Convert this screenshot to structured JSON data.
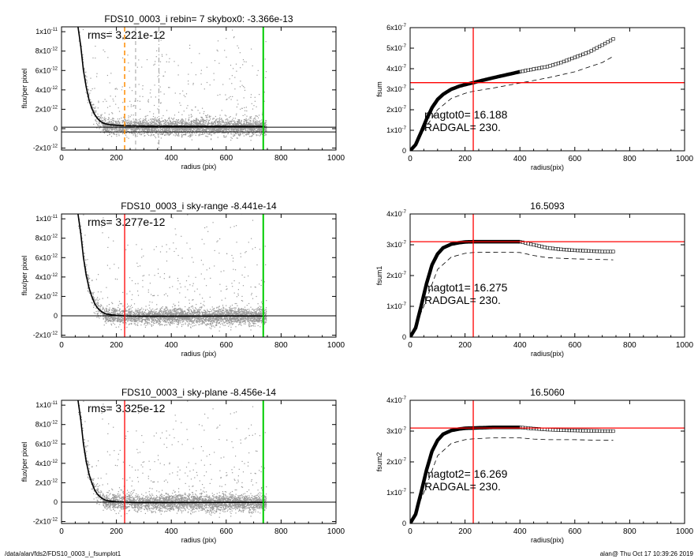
{
  "footer": {
    "path": "/data/alan/fds2/FDS10_0003_i_fsumplot1",
    "stamp": "alan@  Thu Oct 17 10:39:26 2019"
  },
  "colors": {
    "profile": "#000000",
    "scatter": "#999999",
    "radgal_line": "#ff0000",
    "sky_line": "#00cc00",
    "guess_line": "#ff8c00",
    "axis": "#000000"
  },
  "chart_data": [
    {
      "id": "profile-1",
      "type": "scatter",
      "title": "FDS10_0003_i rebin= 7    skybox0: -3.366e-13",
      "annotation": "rms= 3.221e-12",
      "xlabel": "radius (pix)",
      "ylabel": "flux/per pixel",
      "xlim": [
        0,
        1000
      ],
      "ylim": [
        -2.2e-12,
        1.05e-11
      ],
      "xticks": [
        "0",
        "200",
        "400",
        "600",
        "800",
        "1000"
      ],
      "yticks": [
        {
          "v": -2e-12,
          "m": "-2",
          "e": "-12"
        },
        {
          "v": 0,
          "m": "0",
          "e": ""
        },
        {
          "v": 2e-12,
          "m": "2",
          "e": "-12"
        },
        {
          "v": 4e-12,
          "m": "4",
          "e": "-12"
        },
        {
          "v": 6e-12,
          "m": "6",
          "e": "-12"
        },
        {
          "v": 8e-12,
          "m": "8",
          "e": "-12"
        },
        {
          "v": 1e-11,
          "m": "1",
          "e": "-11"
        }
      ],
      "profile": {
        "x": [
          60,
          70,
          80,
          90,
          100,
          110,
          120,
          130,
          140,
          150,
          160,
          180,
          200,
          230,
          260,
          300,
          350,
          400,
          450,
          500,
          550,
          600,
          650,
          700,
          740
        ],
        "y": [
          1.05e-11,
          8.5e-12,
          6e-12,
          4.3e-12,
          3e-12,
          2.1e-12,
          1.5e-12,
          1.1e-12,
          8e-13,
          6e-13,
          5e-13,
          4e-13,
          3.5e-13,
          3e-13,
          2.8e-13,
          2.7e-13,
          2.6e-13,
          2.6e-13,
          2.5e-13,
          2.5e-13,
          2.5e-13,
          2.5e-13,
          2.4e-13,
          2.4e-13,
          2.4e-13
        ]
      },
      "hlines": [
        1.5e-13,
        -3.366e-13
      ],
      "vlines": [
        {
          "x": 230,
          "style": "orange-dashed"
        },
        {
          "x": 270,
          "style": "gray-dashed"
        },
        {
          "x": 355,
          "style": "gray-dashdot"
        },
        {
          "x": 735,
          "style": "green"
        }
      ],
      "scatter_note": "dense point cloud of per-pixel flux values"
    },
    {
      "id": "growth-1",
      "type": "line",
      "title": "",
      "xlabel": "radius(pix)",
      "ylabel": "fsum",
      "xlim": [
        0,
        1000
      ],
      "ylim": [
        0,
        6e-07
      ],
      "xticks": [
        "0",
        "200",
        "400",
        "600",
        "800",
        "1000"
      ],
      "yticks": [
        {
          "v": 0,
          "m": "0",
          "e": ""
        },
        {
          "v": 1e-07,
          "m": "1",
          "e": "-7"
        },
        {
          "v": 2e-07,
          "m": "2",
          "e": "-7"
        },
        {
          "v": 3e-07,
          "m": "3",
          "e": "-7"
        },
        {
          "v": 4e-07,
          "m": "4",
          "e": "-7"
        },
        {
          "v": 5e-07,
          "m": "5",
          "e": "-7"
        },
        {
          "v": 6e-07,
          "m": "6",
          "e": "-7"
        }
      ],
      "annotations": [
        "magtot0=  16.188",
        "RADGAL=    230."
      ],
      "curve": {
        "x": [
          0,
          20,
          40,
          60,
          80,
          100,
          120,
          150,
          180,
          200,
          230,
          260,
          300,
          350,
          400,
          450,
          500,
          550,
          600,
          650,
          700,
          740
        ],
        "y": [
          0,
          3e-08,
          9e-08,
          1.55e-07,
          2.1e-07,
          2.5e-07,
          2.75e-07,
          3e-07,
          3.15e-07,
          3.22e-07,
          3.32e-07,
          3.42e-07,
          3.55e-07,
          3.7e-07,
          3.85e-07,
          3.98e-07,
          4.1e-07,
          4.3e-07,
          4.55e-07,
          4.8e-07,
          5.15e-07,
          5.45e-07
        ]
      },
      "dashed": {
        "x": [
          0,
          50,
          100,
          150,
          200,
          230,
          300,
          400,
          500,
          600,
          700,
          740
        ],
        "y": [
          0,
          1e-07,
          2e-07,
          2.55e-07,
          2.8e-07,
          2.9e-07,
          3.05e-07,
          3.3e-07,
          3.55e-07,
          3.85e-07,
          4.3e-07,
          4.6e-07
        ]
      },
      "marker_start_x": 400,
      "hline": 3.32e-07,
      "vline": 230
    },
    {
      "id": "profile-2",
      "type": "scatter",
      "title": "FDS10_0003_i sky-range -8.441e-14",
      "annotation": "rms= 3.277e-12",
      "xlabel": "radius (pix)",
      "ylabel": "flux/per pixel",
      "xlim": [
        0,
        1000
      ],
      "ylim": [
        -2.2e-12,
        1.05e-11
      ],
      "xticks": [
        "0",
        "200",
        "400",
        "600",
        "800",
        "1000"
      ],
      "yticks": [
        {
          "v": -2e-12,
          "m": "-2",
          "e": "-12"
        },
        {
          "v": 0,
          "m": "0",
          "e": ""
        },
        {
          "v": 2e-12,
          "m": "2",
          "e": "-12"
        },
        {
          "v": 4e-12,
          "m": "4",
          "e": "-12"
        },
        {
          "v": 6e-12,
          "m": "6",
          "e": "-12"
        },
        {
          "v": 8e-12,
          "m": "8",
          "e": "-12"
        },
        {
          "v": 1e-11,
          "m": "1",
          "e": "-11"
        }
      ],
      "profile": {
        "x": [
          60,
          70,
          80,
          90,
          100,
          110,
          120,
          130,
          140,
          150,
          160,
          180,
          200,
          230,
          260,
          300,
          350,
          400,
          450,
          500,
          550,
          600,
          650,
          700,
          740
        ],
        "y": [
          1.05e-11,
          8.5e-12,
          6e-12,
          4.2e-12,
          2.9e-12,
          2e-12,
          1.3e-12,
          8.5e-13,
          5.5e-13,
          3.5e-13,
          2e-13,
          1e-13,
          5e-14,
          0,
          -3e-14,
          -5e-14,
          -5e-14,
          -4e-14,
          -4e-14,
          -3e-14,
          -3e-14,
          -2e-14,
          -2e-14,
          -2e-14,
          -2e-14
        ]
      },
      "hlines": [
        0
      ],
      "vlines": [
        {
          "x": 230,
          "style": "red"
        },
        {
          "x": 735,
          "style": "green"
        }
      ],
      "scatter_note": "dense point cloud of per-pixel flux values"
    },
    {
      "id": "growth-2",
      "type": "line",
      "title": "16.5093",
      "xlabel": "radius(pix)",
      "ylabel": "fsum1",
      "xlim": [
        0,
        1000
      ],
      "ylim": [
        0,
        4e-07
      ],
      "xticks": [
        "0",
        "200",
        "400",
        "600",
        "800",
        "1000"
      ],
      "yticks": [
        {
          "v": 0,
          "m": "0",
          "e": ""
        },
        {
          "v": 1e-07,
          "m": "1",
          "e": "-7"
        },
        {
          "v": 2e-07,
          "m": "2",
          "e": "-7"
        },
        {
          "v": 3e-07,
          "m": "3",
          "e": "-7"
        },
        {
          "v": 4e-07,
          "m": "4",
          "e": "-7"
        }
      ],
      "annotations": [
        "magtot1=  16.275",
        "RADGAL=    230."
      ],
      "curve": {
        "x": [
          0,
          20,
          40,
          60,
          80,
          100,
          120,
          150,
          180,
          200,
          230,
          260,
          300,
          350,
          400,
          450,
          500,
          550,
          600,
          650,
          700,
          740
        ],
        "y": [
          0,
          3e-08,
          1e-07,
          1.75e-07,
          2.35e-07,
          2.7e-07,
          2.9e-07,
          3.02e-07,
          3.07e-07,
          3.09e-07,
          3.1e-07,
          3.1e-07,
          3.1e-07,
          3.1e-07,
          3.1e-07,
          3e-07,
          2.9e-07,
          2.85e-07,
          2.82e-07,
          2.8e-07,
          2.78e-07,
          2.78e-07
        ]
      },
      "dashed": {
        "x": [
          0,
          50,
          100,
          150,
          200,
          230,
          300,
          400,
          450,
          500,
          600,
          700,
          740
        ],
        "y": [
          0,
          1e-07,
          2.2e-07,
          2.6e-07,
          2.72e-07,
          2.75e-07,
          2.76e-07,
          2.75e-07,
          2.65e-07,
          2.58e-07,
          2.54e-07,
          2.52e-07,
          2.51e-07
        ]
      },
      "marker_start_x": 400,
      "hline": 3.1e-07,
      "vline": 230
    },
    {
      "id": "profile-3",
      "type": "scatter",
      "title": "FDS10_0003_i sky-plane -8.456e-14",
      "annotation": "rms= 3.325e-12",
      "xlabel": "radius (pix)",
      "ylabel": "flux/per pixel",
      "xlim": [
        0,
        1000
      ],
      "ylim": [
        -2.2e-12,
        1.05e-11
      ],
      "xticks": [
        "0",
        "200",
        "400",
        "600",
        "800",
        "1000"
      ],
      "yticks": [
        {
          "v": -2e-12,
          "m": "-2",
          "e": "-12"
        },
        {
          "v": 0,
          "m": "0",
          "e": ""
        },
        {
          "v": 2e-12,
          "m": "2",
          "e": "-12"
        },
        {
          "v": 4e-12,
          "m": "4",
          "e": "-12"
        },
        {
          "v": 6e-12,
          "m": "6",
          "e": "-12"
        },
        {
          "v": 8e-12,
          "m": "8",
          "e": "-12"
        },
        {
          "v": 1e-11,
          "m": "1",
          "e": "-11"
        }
      ],
      "profile": {
        "x": [
          60,
          70,
          80,
          90,
          100,
          110,
          120,
          130,
          140,
          150,
          160,
          180,
          200,
          230,
          260,
          300,
          350,
          400,
          450,
          500,
          550,
          600,
          650,
          700,
          740
        ],
        "y": [
          1.05e-11,
          8.5e-12,
          6e-12,
          4.2e-12,
          2.9e-12,
          2e-12,
          1.3e-12,
          8.5e-13,
          5.5e-13,
          3.5e-13,
          2e-13,
          1e-13,
          5e-14,
          0,
          -3e-14,
          -5e-14,
          -5e-14,
          -4e-14,
          -4e-14,
          -3e-14,
          -3e-14,
          -2e-14,
          -2e-14,
          -2e-14,
          -2e-14
        ]
      },
      "hlines": [
        0
      ],
      "vlines": [
        {
          "x": 230,
          "style": "red"
        },
        {
          "x": 735,
          "style": "green"
        }
      ],
      "scatter_note": "dense point cloud of per-pixel flux values"
    },
    {
      "id": "growth-3",
      "type": "line",
      "title": "16.5060",
      "xlabel": "radius(pix)",
      "ylabel": "fsum2",
      "xlim": [
        0,
        1000
      ],
      "ylim": [
        0,
        4e-07
      ],
      "xticks": [
        "0",
        "200",
        "400",
        "600",
        "800",
        "1000"
      ],
      "yticks": [
        {
          "v": 0,
          "m": "0",
          "e": ""
        },
        {
          "v": 1e-07,
          "m": "1",
          "e": "-7"
        },
        {
          "v": 2e-07,
          "m": "2",
          "e": "-7"
        },
        {
          "v": 3e-07,
          "m": "3",
          "e": "-7"
        },
        {
          "v": 4e-07,
          "m": "4",
          "e": "-7"
        }
      ],
      "annotations": [
        "magtot2=  16.269",
        "RADGAL=    230."
      ],
      "curve": {
        "x": [
          0,
          20,
          40,
          60,
          80,
          100,
          120,
          150,
          180,
          200,
          230,
          260,
          300,
          350,
          400,
          450,
          500,
          550,
          600,
          650,
          700,
          740
        ],
        "y": [
          0,
          3e-08,
          1e-07,
          1.75e-07,
          2.35e-07,
          2.7e-07,
          2.9e-07,
          3.02e-07,
          3.07e-07,
          3.09e-07,
          3.1e-07,
          3.11e-07,
          3.12e-07,
          3.12e-07,
          3.12e-07,
          3.08e-07,
          3.05e-07,
          3.03e-07,
          3.02e-07,
          3.01e-07,
          3e-07,
          3e-07
        ]
      },
      "dashed": {
        "x": [
          0,
          50,
          100,
          150,
          200,
          230,
          300,
          400,
          450,
          500,
          600,
          700,
          740
        ],
        "y": [
          0,
          1e-07,
          2.2e-07,
          2.6e-07,
          2.72e-07,
          2.75e-07,
          2.78e-07,
          2.78e-07,
          2.74e-07,
          2.72e-07,
          2.72e-07,
          2.7e-07,
          2.7e-07
        ]
      },
      "marker_start_x": 400,
      "hline": 3.1e-07,
      "vline": 230
    }
  ]
}
